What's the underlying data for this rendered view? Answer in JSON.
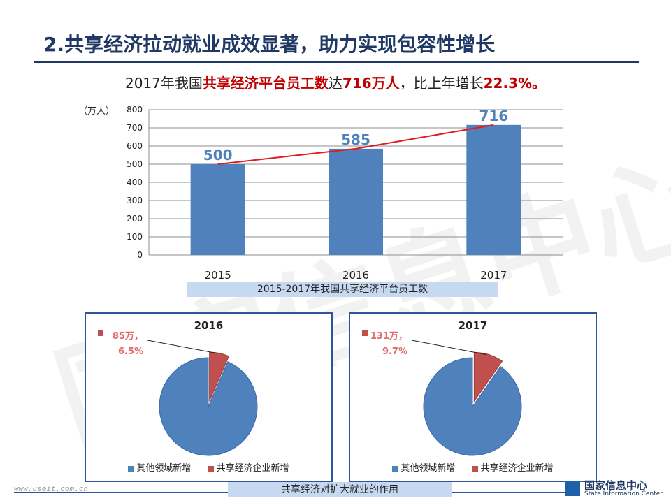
{
  "header": {
    "title": "2.共享经济拉动就业成效显著，助力实现包容性增长",
    "subtitle_parts": [
      "2017年我国",
      "共享经济平台员工数",
      "达",
      "716万人",
      "，比上年增长",
      "22.3%。"
    ]
  },
  "chart_data": [
    {
      "type": "bar",
      "categories": [
        "2015",
        "2016",
        "2017"
      ],
      "values": [
        500,
        585,
        716
      ],
      "data_labels": [
        "500",
        "585",
        "716"
      ],
      "ylabel": "（万人）",
      "ylim": [
        0,
        800
      ],
      "yticks": [
        0,
        100,
        200,
        300,
        400,
        500,
        600,
        700,
        800
      ],
      "grid": true,
      "trend_line": true,
      "bar_color": "#4f81bd",
      "label_color": "#4f81bd",
      "trend_color": "#e41a1c",
      "caption": "2015-2017年我国共享经济平台员工数"
    },
    {
      "type": "pie",
      "title": "2016",
      "labels": [
        "其他领域新增",
        "共享经济企业新增"
      ],
      "values": [
        93.5,
        6.5
      ],
      "callout": [
        "85万，",
        "6.5%"
      ],
      "colors": [
        "#4f81bd",
        "#c0504d"
      ]
    },
    {
      "type": "pie",
      "title": "2017",
      "labels": [
        "其他领域新增",
        "共享经济企业新增"
      ],
      "values": [
        90.3,
        9.7
      ],
      "callout": [
        "131万，",
        "9.7%"
      ],
      "colors": [
        "#4f81bd",
        "#c0504d"
      ]
    }
  ],
  "bottom_caption": "共享经济对扩大就业的作用",
  "watermark": "国家信息中心",
  "footer": {
    "url": "www.useit.com.cn",
    "logo_name": "国家信息中心",
    "logo_en": "State Information Center"
  }
}
